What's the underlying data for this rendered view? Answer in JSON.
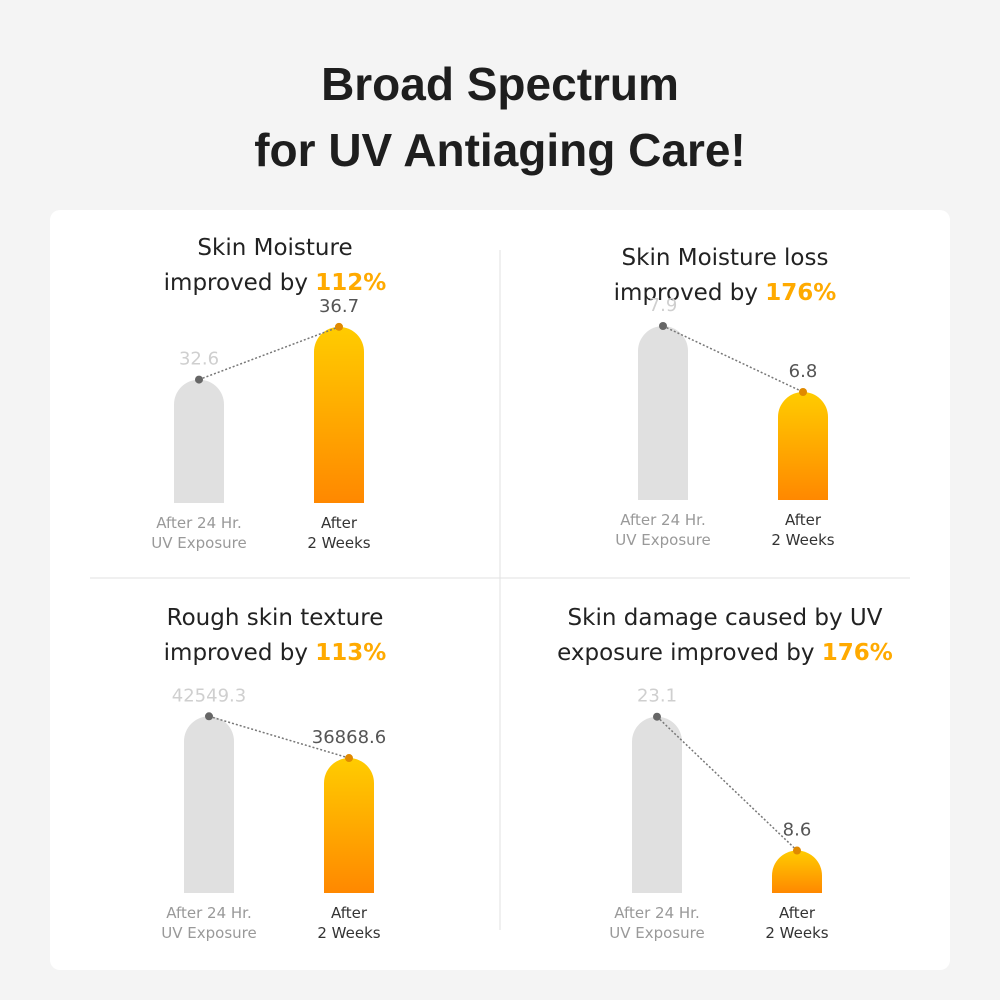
{
  "header": {
    "title": "Broad Spectrum\nfor UV Antiaging Care!"
  },
  "chart_data": [
    {
      "type": "bar",
      "title": "Skin Moisture\nimproved by",
      "highlight": "112%",
      "categories": [
        "After 24 Hr.\nUV Exposure",
        "After\n2 Weeks"
      ],
      "values": [
        32.6,
        36.7
      ],
      "colors": [
        "#e0e0e0",
        "#ff9a00"
      ],
      "ylim": [
        23,
        37
      ]
    },
    {
      "type": "bar",
      "title": "Skin Moisture loss\nimproved by",
      "highlight": "176%",
      "categories": [
        "After 24 Hr.\nUV Exposure",
        "After\n2 Weeks"
      ],
      "values": [
        7.9,
        6.8
      ],
      "colors": [
        "#e0e0e0",
        "#ff9a00"
      ],
      "ylim": [
        5,
        8
      ]
    },
    {
      "type": "bar",
      "title": "Rough skin texture\nimproved by",
      "highlight": "113%",
      "categories": [
        "After 24 Hr.\nUV Exposure",
        "After\n2 Weeks"
      ],
      "values": [
        42549.3,
        36868.6
      ],
      "colors": [
        "#e0e0e0",
        "#ff9a00"
      ],
      "ylim": [
        18500,
        43000
      ]
    },
    {
      "type": "bar",
      "title": "Skin damage caused by UV\nexposure improved by",
      "highlight": "176%",
      "categories": [
        "After 24 Hr.\nUV Exposure",
        "After\n2 Weeks"
      ],
      "values": [
        23.1,
        8.6
      ],
      "colors": [
        "#e0e0e0",
        "#ff9a00"
      ],
      "ylim": [
        4,
        23.5
      ]
    }
  ]
}
